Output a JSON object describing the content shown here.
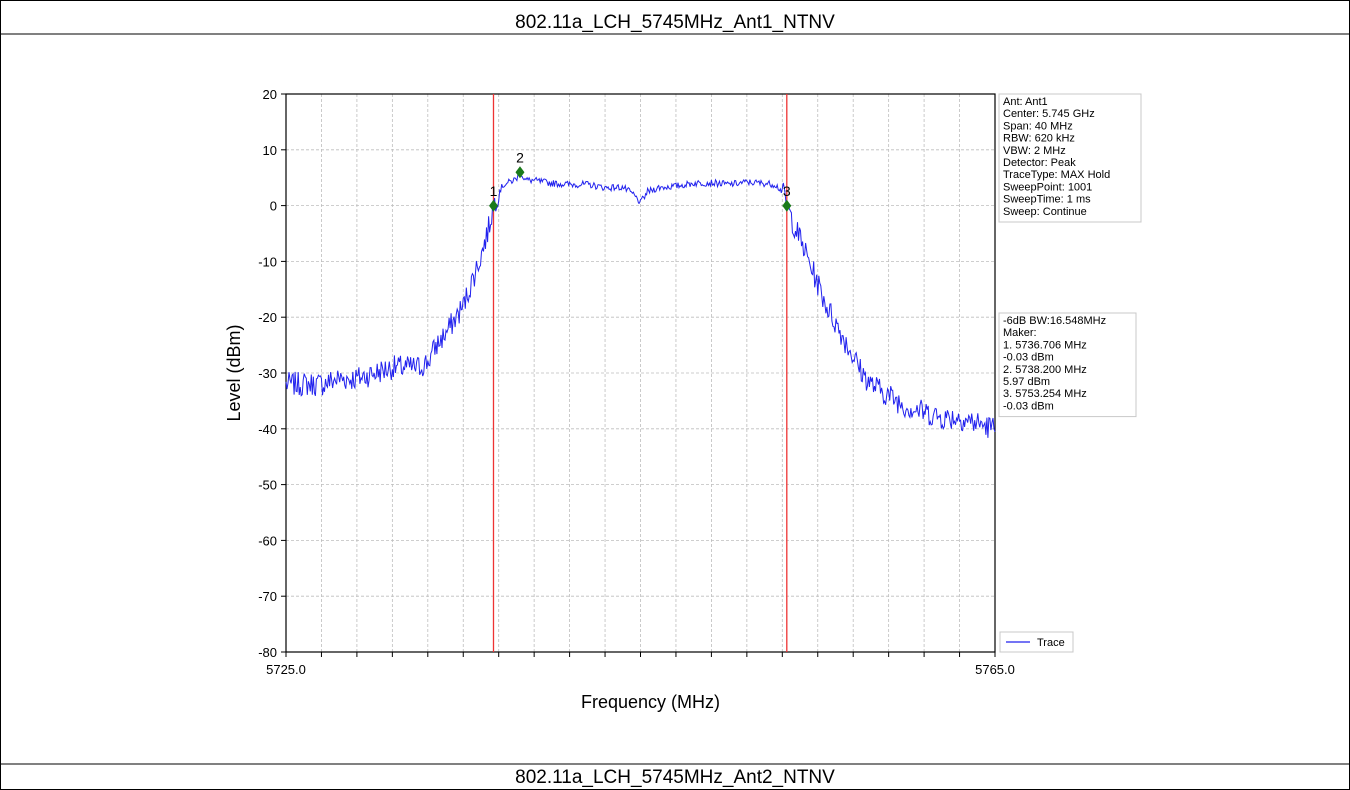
{
  "page": {
    "title_top": "802.11a_LCH_5745MHz_Ant1_NTNV",
    "title_bottom": "802.11a_LCH_5745MHz_Ant2_NTNV"
  },
  "chart_data": {
    "type": "line",
    "title": "",
    "xlabel": "Frequency (MHz)",
    "ylabel": "Level (dBm)",
    "xlim": [
      5725.0,
      5765.0
    ],
    "ylim": [
      -80,
      20
    ],
    "x_tick_labels": [
      "5725.0",
      "5765.0"
    ],
    "x_minor_ticks": [
      5727,
      5729,
      5731,
      5733,
      5735,
      5737,
      5739,
      5741,
      5743,
      5745,
      5747,
      5749,
      5751,
      5753,
      5755,
      5757,
      5759,
      5761,
      5763
    ],
    "y_ticks": [
      20,
      10,
      0,
      -10,
      -20,
      -30,
      -40,
      -50,
      -60,
      -70,
      -80
    ],
    "grid": true,
    "line_color": "#2222ee",
    "marker_color": "#1a7a1a",
    "vline_color": "#ee3333",
    "series": [
      {
        "name": "Trace",
        "x": [
          5725.0,
          5726.0,
          5727.0,
          5728.0,
          5729.0,
          5730.0,
          5731.0,
          5732.0,
          5732.5,
          5733.0,
          5733.5,
          5734.0,
          5734.5,
          5735.0,
          5735.5,
          5736.0,
          5736.4,
          5736.7,
          5737.0,
          5737.3,
          5737.6,
          5738.0,
          5738.2,
          5738.5,
          5739.0,
          5740.0,
          5741.0,
          5742.0,
          5743.0,
          5744.0,
          5744.6,
          5745.0,
          5745.4,
          5746.0,
          5747.0,
          5748.0,
          5749.0,
          5750.0,
          5751.0,
          5752.0,
          5752.6,
          5753.0,
          5753.254,
          5753.6,
          5754.0,
          5754.5,
          5755.0,
          5755.5,
          5756.0,
          5756.5,
          5757.0,
          5757.5,
          5758.0,
          5759.0,
          5760.0,
          5761.0,
          5762.0,
          5763.0,
          5764.0,
          5765.0
        ],
        "y": [
          -32,
          -32,
          -32,
          -31,
          -31,
          -30,
          -29,
          -29,
          -29,
          -28,
          -25,
          -23,
          -20.5,
          -18,
          -13.5,
          -9,
          -4.5,
          -0.03,
          2.5,
          3.8,
          4.2,
          4.8,
          5.97,
          4.6,
          4.5,
          4.0,
          3.8,
          3.8,
          3.2,
          3.3,
          2.0,
          0.5,
          2.5,
          3.2,
          3.5,
          4.0,
          4.1,
          3.8,
          4.2,
          4.0,
          3.8,
          2.5,
          -0.03,
          -3,
          -6,
          -10,
          -14,
          -18,
          -21,
          -24,
          -27,
          -30,
          -32,
          -34,
          -36,
          -37,
          -38,
          -38,
          -39,
          -40
        ]
      }
    ],
    "vlines": [
      5736.706,
      5753.254
    ],
    "markers": [
      {
        "label": "1",
        "x": 5736.706,
        "y": -0.03
      },
      {
        "label": "2",
        "x": 5738.2,
        "y": 5.97
      },
      {
        "label": "3",
        "x": 5753.254,
        "y": -0.03
      }
    ],
    "info_box": [
      "Ant: Ant1",
      "Center: 5.745 GHz",
      "Span: 40 MHz",
      "RBW: 620 kHz",
      "VBW: 2 MHz",
      "Detector: Peak",
      "TraceType: MAX Hold",
      "SweepPoint: 1001",
      "SweepTime: 1 ms",
      "Sweep: Continue"
    ],
    "marker_box": [
      "-6dB BW:16.548MHz",
      "Maker:",
      "1. 5736.706 MHz",
      "   -0.03 dBm",
      "2. 5738.200 MHz",
      "   5.97 dBm",
      "3. 5753.254 MHz",
      "   -0.03 dBm"
    ],
    "legend": {
      "entries": [
        "Trace"
      ],
      "placement": "bottom-right"
    }
  }
}
